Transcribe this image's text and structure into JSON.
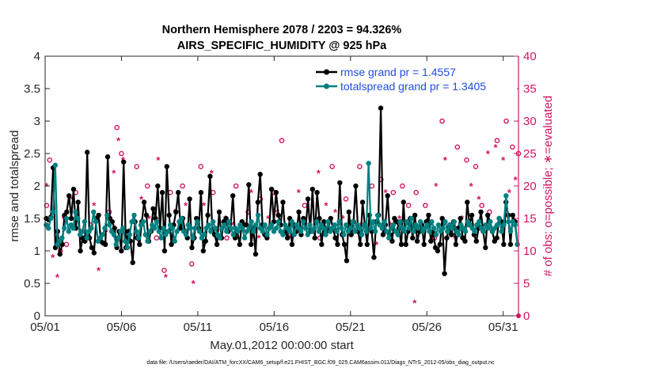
{
  "chart_data": {
    "type": "line",
    "title": "Northern Hemisphere 2078 / 2203 = 94.326%",
    "subtitle": "AIRS_SPECIFIC_HUMIDITY @ 925 hPa",
    "xlabel": "May.01,2012 00:00:00 start",
    "ylabel": "rmse and totalspread",
    "y2label": "# of obs: o=possible; ∗=evaluated",
    "footnote": "data file: /Users/raeder/DAI/ATM_forcXX/CAM6_setup/f.e21.FHIST_BGC.f09_025.CAM6assim.011/Diags_NTrS_2012-05/obs_diag_output.nc",
    "xlim": [
      0,
      31
    ],
    "ylim": [
      0,
      4
    ],
    "y2lim": [
      0,
      40
    ],
    "xtick_positions": [
      0,
      5,
      10,
      15,
      20,
      25,
      30
    ],
    "xtick_labels": [
      "05/01",
      "05/06",
      "05/11",
      "05/16",
      "05/21",
      "05/26",
      "05/31"
    ],
    "ytick_labels": [
      "0",
      "0.5",
      "1",
      "1.5",
      "2",
      "2.5",
      "3",
      "3.5",
      "4"
    ],
    "y2tick_labels": [
      "0",
      "5",
      "10",
      "15",
      "20",
      "25",
      "30",
      "35",
      "40"
    ],
    "legend_position": "top-right",
    "colors": {
      "rmse": "#000000",
      "spread": "#008080",
      "obs": "#d11560",
      "axis": "#262626"
    },
    "series": [
      {
        "name": "rmse",
        "label": "rmse grand pr = 1.4557",
        "values": [
          1.5,
          1.48,
          1.52,
          2.28,
          1.05,
          1.3,
          0.95,
          1.1,
          1.55,
          1.6,
          1.85,
          1.5,
          1.95,
          1.35,
          1.75,
          1.0,
          1.2,
          1.15,
          2.52,
          1.2,
          1.05,
          0.97,
          1.5,
          1.55,
          1.15,
          1.12,
          1.1,
          2.45,
          1.5,
          1.45,
          1.35,
          1.05,
          1.3,
          1.0,
          2.37,
          1.05,
          1.3,
          1.15,
          0.82,
          1.45,
          1.2,
          1.1,
          1.45,
          1.75,
          1.55,
          1.15,
          1.3,
          1.65,
          1.5,
          2.0,
          1.35,
          1.9,
          1.0,
          2.3,
          1.55,
          1.1,
          1.4,
          1.6,
          1.9,
          1.35,
          1.5,
          1.3,
          1.2,
          1.8,
          1.05,
          1.2,
          1.5,
          1.35,
          1.9,
          1.0,
          1.15,
          1.55,
          2.15,
          1.3,
          1.25,
          1.1,
          1.6,
          1.2,
          1.45,
          1.5,
          1.3,
          1.35,
          1.85,
          1.2,
          1.3,
          1.1,
          1.45,
          1.4,
          1.4,
          2.02,
          1.1,
          1.35,
          0.95,
          1.75,
          2.18,
          1.4,
          1.25,
          1.2,
          1.35,
          1.95,
          1.45,
          1.9,
          1.55,
          1.4,
          1.75,
          1.3,
          1.2,
          1.5,
          1.1,
          1.4,
          1.3,
          1.6,
          1.25,
          1.5,
          1.35,
          1.8,
          1.3,
          1.95,
          1.2,
          1.9,
          1.5,
          1.1,
          1.45,
          1.3,
          1.35,
          1.5,
          1.35,
          1.2,
          1.1,
          2.05,
          1.25,
          1.1,
          0.85,
          1.6,
          1.25,
          1.45,
          2.0,
          1.3,
          1.1,
          1.75,
          1.4,
          1.1,
          1.55,
          1.3,
          0.9,
          1.45,
          1.55,
          3.2,
          1.25,
          1.4,
          1.85,
          1.25,
          1.15,
          1.5,
          1.45,
          1.35,
          1.1,
          1.75,
          1.1,
          1.3,
          1.5,
          1.2,
          1.55,
          1.15,
          1.3,
          1.4,
          1.1,
          1.45,
          1.55,
          1.15,
          1.3,
          1.05,
          1.0,
          1.1,
          1.5,
          0.65,
          1.2,
          1.35,
          1.25,
          1.45,
          1.1,
          1.35,
          1.5,
          1.2,
          1.15,
          1.75,
          1.4,
          1.55,
          1.25,
          1.15,
          1.35,
          1.6,
          1.3,
          1.05,
          1.55,
          1.45,
          1.3,
          1.15,
          1.2,
          1.5,
          1.45,
          1.1,
          1.75,
          1.55,
          1.1,
          1.55,
          1.45,
          1.1
        ]
      },
      {
        "name": "totalspread",
        "label": "totalspread grand pr = 1.3405",
        "values": [
          1.4,
          1.35,
          1.5,
          1.6,
          2.32,
          1.1,
          1.15,
          1.2,
          1.35,
          1.5,
          1.3,
          1.4,
          1.35,
          1.6,
          1.5,
          1.25,
          1.3,
          1.45,
          1.2,
          1.3,
          1.35,
          1.6,
          1.45,
          1.15,
          1.2,
          1.25,
          1.35,
          1.55,
          1.4,
          1.3,
          1.25,
          1.1,
          1.2,
          1.3,
          1.35,
          1.15,
          1.05,
          1.25,
          1.45,
          1.55,
          1.3,
          1.2,
          1.4,
          1.45,
          1.25,
          1.15,
          1.3,
          1.4,
          1.35,
          1.45,
          1.3,
          1.2,
          1.35,
          1.25,
          1.3,
          1.4,
          1.35,
          1.15,
          1.3,
          1.45,
          1.5,
          1.3,
          1.25,
          1.4,
          1.35,
          1.2,
          1.35,
          1.45,
          1.3,
          1.2,
          1.25,
          1.35,
          1.4,
          1.3,
          1.45,
          1.35,
          1.25,
          1.2,
          1.35,
          1.4,
          1.3,
          1.45,
          1.35,
          1.25,
          1.35,
          1.3,
          1.4,
          1.35,
          1.2,
          1.3,
          1.35,
          1.45,
          1.3,
          1.4,
          1.55,
          1.35,
          1.3,
          1.4,
          1.25,
          1.35,
          1.4,
          1.3,
          1.35,
          1.45,
          1.3,
          1.25,
          1.4,
          1.35,
          1.3,
          1.45,
          1.25,
          1.4,
          1.35,
          1.3,
          1.45,
          1.35,
          1.25,
          1.4,
          1.3,
          1.35,
          1.45,
          1.3,
          1.4,
          1.35,
          1.25,
          1.45,
          1.3,
          1.35,
          1.4,
          1.3,
          1.45,
          1.35,
          1.25,
          1.4,
          1.3,
          1.35,
          1.45,
          1.3,
          1.4,
          1.35,
          1.25,
          1.4,
          1.3,
          2.35,
          1.35,
          1.45,
          1.3,
          1.55,
          1.4,
          1.35,
          1.45,
          1.3,
          1.2,
          1.35,
          1.4,
          1.3,
          1.25,
          1.45,
          1.35,
          1.3,
          1.45,
          1.35,
          1.5,
          1.3,
          1.4,
          1.35,
          1.45,
          1.3,
          1.35,
          1.4,
          1.3,
          1.45,
          1.35,
          1.25,
          1.4,
          1.3,
          1.35,
          1.45,
          1.3,
          1.4,
          1.35,
          1.45,
          1.3,
          1.25,
          1.4,
          1.35,
          1.3,
          1.45,
          1.4,
          1.35,
          1.3,
          1.4,
          1.45,
          1.35,
          1.3,
          1.4,
          1.35,
          1.45,
          1.3,
          1.35,
          1.4,
          1.5,
          1.3,
          1.4,
          1.85,
          1.45,
          1.3,
          1.45,
          1.4,
          1.1
        ]
      }
    ],
    "obs_possible": [
      [
        0.1,
        17
      ],
      [
        0.3,
        24
      ],
      [
        1.0,
        10
      ],
      [
        1.4,
        11
      ],
      [
        2.0,
        19
      ],
      [
        3.0,
        14
      ],
      [
        4.2,
        16
      ],
      [
        4.7,
        29
      ],
      [
        5.0,
        25
      ],
      [
        5.3,
        12
      ],
      [
        6.0,
        23
      ],
      [
        6.7,
        20
      ],
      [
        7.3,
        12
      ],
      [
        7.8,
        7
      ],
      [
        8.2,
        19
      ],
      [
        9.0,
        20
      ],
      [
        9.6,
        8
      ],
      [
        10.2,
        23
      ],
      [
        11.0,
        19
      ],
      [
        11.9,
        12
      ],
      [
        12.5,
        20
      ],
      [
        13.3,
        16
      ],
      [
        14.1,
        18
      ],
      [
        15.0,
        19
      ],
      [
        15.5,
        27
      ],
      [
        16.2,
        14
      ],
      [
        17.0,
        17
      ],
      [
        18.0,
        12
      ],
      [
        18.8,
        23
      ],
      [
        19.7,
        18
      ],
      [
        20.6,
        23
      ],
      [
        21.4,
        20
      ],
      [
        22.0,
        21
      ],
      [
        22.8,
        19
      ],
      [
        23.4,
        20
      ],
      [
        23.8,
        17
      ],
      [
        24.3,
        19
      ],
      [
        24.9,
        17
      ],
      [
        25.5,
        12
      ],
      [
        26.0,
        30
      ],
      [
        26.5,
        14
      ],
      [
        27.0,
        26
      ],
      [
        27.6,
        24
      ],
      [
        28.2,
        23
      ],
      [
        28.6,
        17
      ],
      [
        29.1,
        16
      ],
      [
        29.6,
        27
      ],
      [
        30.2,
        30
      ],
      [
        30.6,
        26
      ],
      [
        31.0,
        25
      ]
    ],
    "obs_evaluated": [
      [
        0.1,
        20
      ],
      [
        0.5,
        9
      ],
      [
        0.8,
        6
      ],
      [
        1.2,
        15
      ],
      [
        1.7,
        18
      ],
      [
        2.3,
        13
      ],
      [
        2.6,
        12
      ],
      [
        3.2,
        17
      ],
      [
        3.5,
        7
      ],
      [
        4.0,
        13
      ],
      [
        4.5,
        22
      ],
      [
        4.8,
        27
      ],
      [
        5.1,
        24
      ],
      [
        5.5,
        13
      ],
      [
        6.3,
        18
      ],
      [
        6.8,
        15
      ],
      [
        7.4,
        24
      ],
      [
        7.9,
        6
      ],
      [
        8.5,
        16
      ],
      [
        9.2,
        17
      ],
      [
        9.7,
        5
      ],
      [
        10.4,
        17
      ],
      [
        10.9,
        22
      ],
      [
        11.3,
        13
      ],
      [
        11.8,
        15
      ],
      [
        12.3,
        14
      ],
      [
        13.0,
        13
      ],
      [
        13.5,
        19
      ],
      [
        14.0,
        12
      ],
      [
        14.6,
        15
      ],
      [
        15.2,
        16
      ],
      [
        16.0,
        12
      ],
      [
        16.6,
        19
      ],
      [
        17.3,
        14
      ],
      [
        17.9,
        22
      ],
      [
        18.4,
        17
      ],
      [
        19.0,
        16
      ],
      [
        19.5,
        15
      ],
      [
        20.1,
        13
      ],
      [
        20.7,
        14
      ],
      [
        21.3,
        14
      ],
      [
        21.7,
        11
      ],
      [
        22.3,
        19
      ],
      [
        22.6,
        14
      ],
      [
        23.2,
        15
      ],
      [
        23.6,
        11
      ],
      [
        24.2,
        2
      ],
      [
        24.7,
        13
      ],
      [
        25.1,
        15
      ],
      [
        25.6,
        20
      ],
      [
        26.2,
        24
      ],
      [
        26.8,
        12
      ],
      [
        27.3,
        15
      ],
      [
        27.9,
        20
      ],
      [
        28.4,
        18
      ],
      [
        29.0,
        25
      ],
      [
        29.5,
        26
      ],
      [
        30.0,
        24
      ],
      [
        30.4,
        19
      ],
      [
        30.8,
        21
      ]
    ]
  }
}
